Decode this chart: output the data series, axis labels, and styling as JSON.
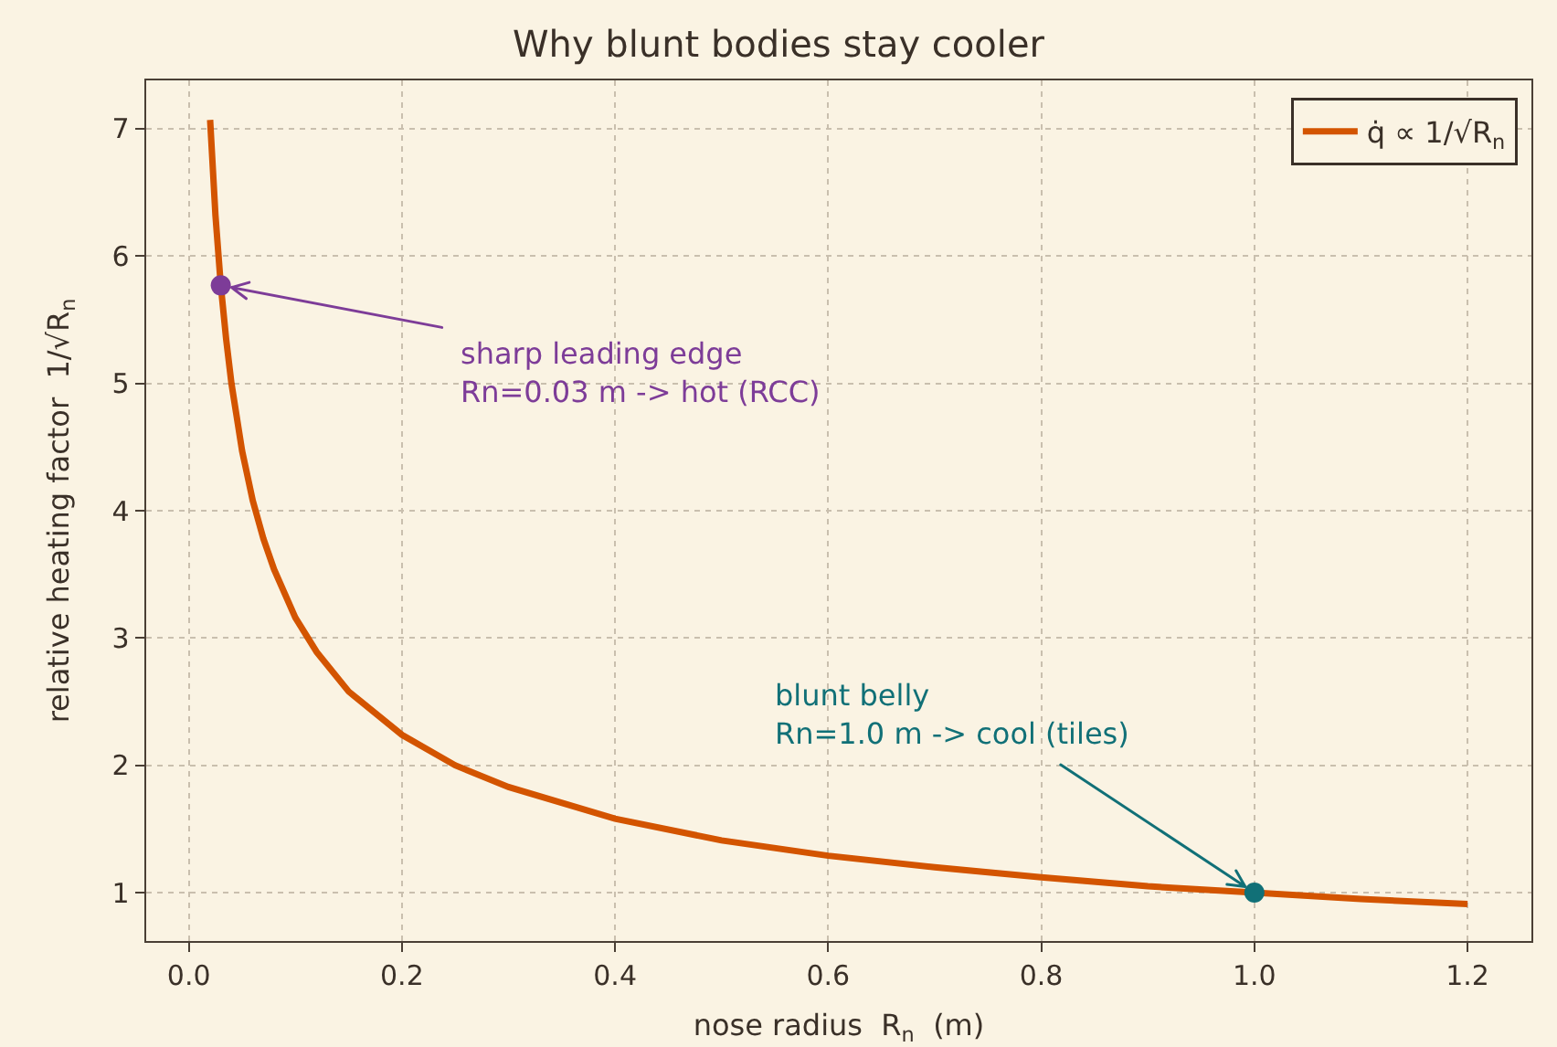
{
  "chart_data": {
    "type": "line",
    "title": "Why blunt bodies stay cooler",
    "xlabel": "nose radius  R$_{n}$  (m)",
    "ylabel": "relative heating factor  1/√R$_{n}$",
    "x": [
      0.02,
      0.025,
      0.03,
      0.035,
      0.04,
      0.05,
      0.06,
      0.07,
      0.08,
      0.1,
      0.12,
      0.15,
      0.2,
      0.25,
      0.3,
      0.4,
      0.5,
      0.6,
      0.7,
      0.8,
      0.9,
      1.0,
      1.1,
      1.2
    ],
    "series": [
      {
        "name": "q̇ ∝ 1/√R$_{n}$",
        "color": "#d35400",
        "marker": "none",
        "values": [
          7.07,
          6.32,
          5.77,
          5.35,
          5.0,
          4.47,
          4.08,
          3.78,
          3.54,
          3.16,
          2.89,
          2.58,
          2.24,
          2.0,
          1.83,
          1.58,
          1.41,
          1.29,
          1.2,
          1.12,
          1.05,
          1.0,
          0.95,
          0.91
        ]
      },
      {
        "type": "scatter",
        "color": "#7d3c98",
        "marker": "circle",
        "x": [
          0.03
        ],
        "values": [
          5.77
        ]
      },
      {
        "type": "scatter",
        "color": "#117077",
        "marker": "circle",
        "x": [
          1.0
        ],
        "values": [
          1.0
        ]
      }
    ],
    "annotations": [
      {
        "text": "sharp leading edge\nRn=0.03 m -> hot (RCC)",
        "x": 0.03,
        "y": 5.77
      },
      {
        "text": "blunt belly\nRn=1.0 m -> cool (tiles)",
        "x": 1.0,
        "y": 1.0
      }
    ],
    "xlim": [
      -0.04,
      1.26
    ],
    "xticks": [
      {
        "value": 0,
        "label": "0.0"
      },
      0.2,
      0.4,
      0.6,
      0.8,
      {
        "value": 1,
        "label": "1.0"
      },
      1.2
    ],
    "ylim": [
      0.62,
      7.38
    ],
    "yticks": [
      1,
      2,
      3,
      4,
      5,
      6,
      7
    ],
    "grid": true,
    "legend": "top right",
    "line_style": "solid"
  }
}
